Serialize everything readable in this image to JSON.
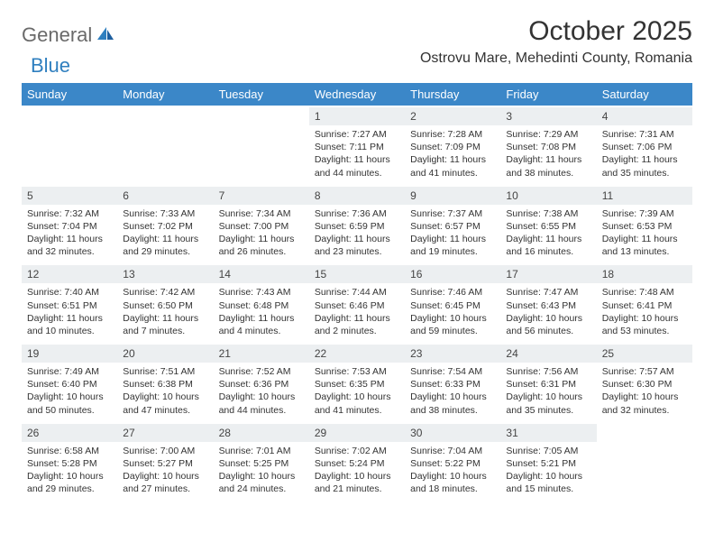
{
  "logo": {
    "general": "General",
    "blue": "Blue"
  },
  "title": "October 2025",
  "location": "Ostrovu Mare, Mehedinti County, Romania",
  "header_bg": "#3b87c8",
  "header_fg": "#ffffff",
  "daynum_bg": "#eceff1",
  "text_color": "#333333",
  "day_headers": [
    "Sunday",
    "Monday",
    "Tuesday",
    "Wednesday",
    "Thursday",
    "Friday",
    "Saturday"
  ],
  "weeks": [
    [
      {
        "n": "",
        "sunrise": "",
        "sunset": "",
        "daylight": ""
      },
      {
        "n": "",
        "sunrise": "",
        "sunset": "",
        "daylight": ""
      },
      {
        "n": "",
        "sunrise": "",
        "sunset": "",
        "daylight": ""
      },
      {
        "n": "1",
        "sunrise": "Sunrise: 7:27 AM",
        "sunset": "Sunset: 7:11 PM",
        "daylight": "Daylight: 11 hours and 44 minutes."
      },
      {
        "n": "2",
        "sunrise": "Sunrise: 7:28 AM",
        "sunset": "Sunset: 7:09 PM",
        "daylight": "Daylight: 11 hours and 41 minutes."
      },
      {
        "n": "3",
        "sunrise": "Sunrise: 7:29 AM",
        "sunset": "Sunset: 7:08 PM",
        "daylight": "Daylight: 11 hours and 38 minutes."
      },
      {
        "n": "4",
        "sunrise": "Sunrise: 7:31 AM",
        "sunset": "Sunset: 7:06 PM",
        "daylight": "Daylight: 11 hours and 35 minutes."
      }
    ],
    [
      {
        "n": "5",
        "sunrise": "Sunrise: 7:32 AM",
        "sunset": "Sunset: 7:04 PM",
        "daylight": "Daylight: 11 hours and 32 minutes."
      },
      {
        "n": "6",
        "sunrise": "Sunrise: 7:33 AM",
        "sunset": "Sunset: 7:02 PM",
        "daylight": "Daylight: 11 hours and 29 minutes."
      },
      {
        "n": "7",
        "sunrise": "Sunrise: 7:34 AM",
        "sunset": "Sunset: 7:00 PM",
        "daylight": "Daylight: 11 hours and 26 minutes."
      },
      {
        "n": "8",
        "sunrise": "Sunrise: 7:36 AM",
        "sunset": "Sunset: 6:59 PM",
        "daylight": "Daylight: 11 hours and 23 minutes."
      },
      {
        "n": "9",
        "sunrise": "Sunrise: 7:37 AM",
        "sunset": "Sunset: 6:57 PM",
        "daylight": "Daylight: 11 hours and 19 minutes."
      },
      {
        "n": "10",
        "sunrise": "Sunrise: 7:38 AM",
        "sunset": "Sunset: 6:55 PM",
        "daylight": "Daylight: 11 hours and 16 minutes."
      },
      {
        "n": "11",
        "sunrise": "Sunrise: 7:39 AM",
        "sunset": "Sunset: 6:53 PM",
        "daylight": "Daylight: 11 hours and 13 minutes."
      }
    ],
    [
      {
        "n": "12",
        "sunrise": "Sunrise: 7:40 AM",
        "sunset": "Sunset: 6:51 PM",
        "daylight": "Daylight: 11 hours and 10 minutes."
      },
      {
        "n": "13",
        "sunrise": "Sunrise: 7:42 AM",
        "sunset": "Sunset: 6:50 PM",
        "daylight": "Daylight: 11 hours and 7 minutes."
      },
      {
        "n": "14",
        "sunrise": "Sunrise: 7:43 AM",
        "sunset": "Sunset: 6:48 PM",
        "daylight": "Daylight: 11 hours and 4 minutes."
      },
      {
        "n": "15",
        "sunrise": "Sunrise: 7:44 AM",
        "sunset": "Sunset: 6:46 PM",
        "daylight": "Daylight: 11 hours and 2 minutes."
      },
      {
        "n": "16",
        "sunrise": "Sunrise: 7:46 AM",
        "sunset": "Sunset: 6:45 PM",
        "daylight": "Daylight: 10 hours and 59 minutes."
      },
      {
        "n": "17",
        "sunrise": "Sunrise: 7:47 AM",
        "sunset": "Sunset: 6:43 PM",
        "daylight": "Daylight: 10 hours and 56 minutes."
      },
      {
        "n": "18",
        "sunrise": "Sunrise: 7:48 AM",
        "sunset": "Sunset: 6:41 PM",
        "daylight": "Daylight: 10 hours and 53 minutes."
      }
    ],
    [
      {
        "n": "19",
        "sunrise": "Sunrise: 7:49 AM",
        "sunset": "Sunset: 6:40 PM",
        "daylight": "Daylight: 10 hours and 50 minutes."
      },
      {
        "n": "20",
        "sunrise": "Sunrise: 7:51 AM",
        "sunset": "Sunset: 6:38 PM",
        "daylight": "Daylight: 10 hours and 47 minutes."
      },
      {
        "n": "21",
        "sunrise": "Sunrise: 7:52 AM",
        "sunset": "Sunset: 6:36 PM",
        "daylight": "Daylight: 10 hours and 44 minutes."
      },
      {
        "n": "22",
        "sunrise": "Sunrise: 7:53 AM",
        "sunset": "Sunset: 6:35 PM",
        "daylight": "Daylight: 10 hours and 41 minutes."
      },
      {
        "n": "23",
        "sunrise": "Sunrise: 7:54 AM",
        "sunset": "Sunset: 6:33 PM",
        "daylight": "Daylight: 10 hours and 38 minutes."
      },
      {
        "n": "24",
        "sunrise": "Sunrise: 7:56 AM",
        "sunset": "Sunset: 6:31 PM",
        "daylight": "Daylight: 10 hours and 35 minutes."
      },
      {
        "n": "25",
        "sunrise": "Sunrise: 7:57 AM",
        "sunset": "Sunset: 6:30 PM",
        "daylight": "Daylight: 10 hours and 32 minutes."
      }
    ],
    [
      {
        "n": "26",
        "sunrise": "Sunrise: 6:58 AM",
        "sunset": "Sunset: 5:28 PM",
        "daylight": "Daylight: 10 hours and 29 minutes."
      },
      {
        "n": "27",
        "sunrise": "Sunrise: 7:00 AM",
        "sunset": "Sunset: 5:27 PM",
        "daylight": "Daylight: 10 hours and 27 minutes."
      },
      {
        "n": "28",
        "sunrise": "Sunrise: 7:01 AM",
        "sunset": "Sunset: 5:25 PM",
        "daylight": "Daylight: 10 hours and 24 minutes."
      },
      {
        "n": "29",
        "sunrise": "Sunrise: 7:02 AM",
        "sunset": "Sunset: 5:24 PM",
        "daylight": "Daylight: 10 hours and 21 minutes."
      },
      {
        "n": "30",
        "sunrise": "Sunrise: 7:04 AM",
        "sunset": "Sunset: 5:22 PM",
        "daylight": "Daylight: 10 hours and 18 minutes."
      },
      {
        "n": "31",
        "sunrise": "Sunrise: 7:05 AM",
        "sunset": "Sunset: 5:21 PM",
        "daylight": "Daylight: 10 hours and 15 minutes."
      },
      {
        "n": "",
        "sunrise": "",
        "sunset": "",
        "daylight": ""
      }
    ]
  ]
}
